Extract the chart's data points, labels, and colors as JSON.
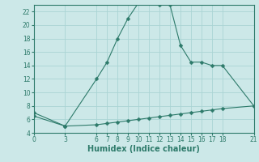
{
  "xlabel": "Humidex (Indice chaleur)",
  "ylabel": "",
  "background_color": "#cce8e8",
  "grid_color": "#aad4d4",
  "line_color": "#2d7a6a",
  "xlim": [
    0,
    21
  ],
  "ylim": [
    4,
    23
  ],
  "xticks": [
    0,
    3,
    6,
    7,
    8,
    9,
    10,
    11,
    12,
    13,
    14,
    15,
    16,
    17,
    18,
    21
  ],
  "yticks": [
    4,
    6,
    8,
    10,
    12,
    14,
    16,
    18,
    20,
    22
  ],
  "curve1_x": [
    0,
    3,
    6,
    7,
    8,
    9,
    10,
    11,
    12,
    13,
    14,
    15,
    16,
    17,
    18,
    21
  ],
  "curve1_y": [
    7,
    5,
    12,
    14.5,
    18,
    21,
    23.3,
    23.3,
    23.0,
    23.0,
    17,
    14.5,
    14.5,
    14,
    14,
    8
  ],
  "curve2_x": [
    0,
    3,
    6,
    7,
    8,
    9,
    10,
    11,
    12,
    13,
    14,
    15,
    16,
    17,
    18,
    21
  ],
  "curve2_y": [
    6.5,
    5.0,
    5.2,
    5.4,
    5.6,
    5.8,
    6.0,
    6.2,
    6.4,
    6.6,
    6.8,
    7.0,
    7.2,
    7.4,
    7.6,
    8.0
  ],
  "markersize": 2.5,
  "linewidth": 0.8,
  "xlabel_fontsize": 7,
  "tick_fontsize": 5.5
}
